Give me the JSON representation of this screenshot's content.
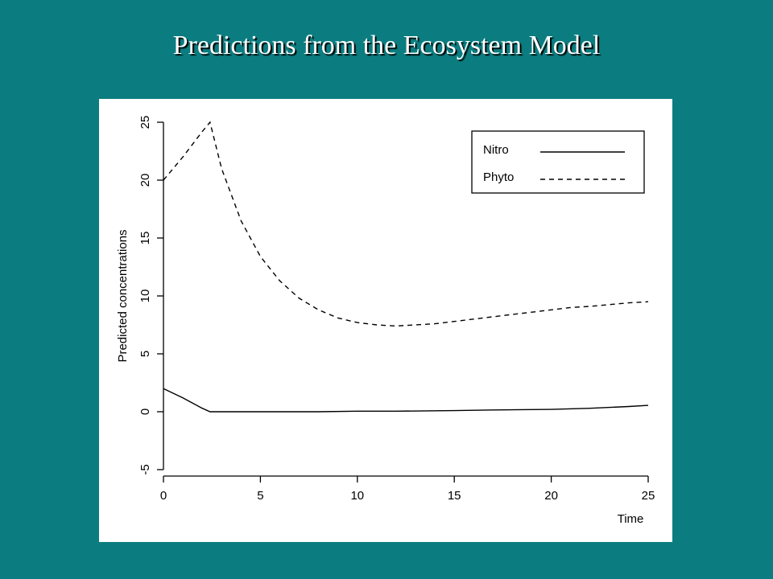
{
  "slide": {
    "title": "Predictions from the Ecosystem Model"
  },
  "chart_data": {
    "type": "line",
    "xlabel": "Time",
    "ylabel": "Predicted concentrations",
    "xlim": [
      0,
      25
    ],
    "ylim": [
      -5,
      25
    ],
    "x_ticks": [
      0,
      5,
      10,
      15,
      20,
      25
    ],
    "y_ticks": [
      -5,
      0,
      5,
      10,
      15,
      20,
      25
    ],
    "grid": false,
    "legend_position": "top-right",
    "series": [
      {
        "name": "Nitro",
        "line_style": "solid",
        "color": "#000000",
        "x": [
          0,
          1,
          2,
          2.4,
          3,
          5,
          8,
          10,
          12,
          15,
          17,
          20,
          22,
          24,
          25
        ],
        "y": [
          2.0,
          1.2,
          0.3,
          0.0,
          0.0,
          0.0,
          0.0,
          0.05,
          0.05,
          0.1,
          0.15,
          0.2,
          0.3,
          0.45,
          0.55
        ]
      },
      {
        "name": "Phyto",
        "line_style": "dashed",
        "color": "#000000",
        "x": [
          0,
          1,
          2,
          2.4,
          3,
          4,
          5,
          6,
          7,
          8,
          9,
          10,
          11,
          12,
          13,
          14,
          15,
          16,
          17,
          18,
          19,
          20,
          21,
          22,
          23,
          24,
          25
        ],
        "y": [
          20.0,
          22.0,
          24.2,
          25.0,
          21.0,
          16.5,
          13.4,
          11.3,
          9.8,
          8.8,
          8.1,
          7.7,
          7.5,
          7.4,
          7.5,
          7.6,
          7.8,
          8.0,
          8.2,
          8.4,
          8.6,
          8.8,
          9.0,
          9.1,
          9.25,
          9.4,
          9.5
        ]
      }
    ]
  }
}
